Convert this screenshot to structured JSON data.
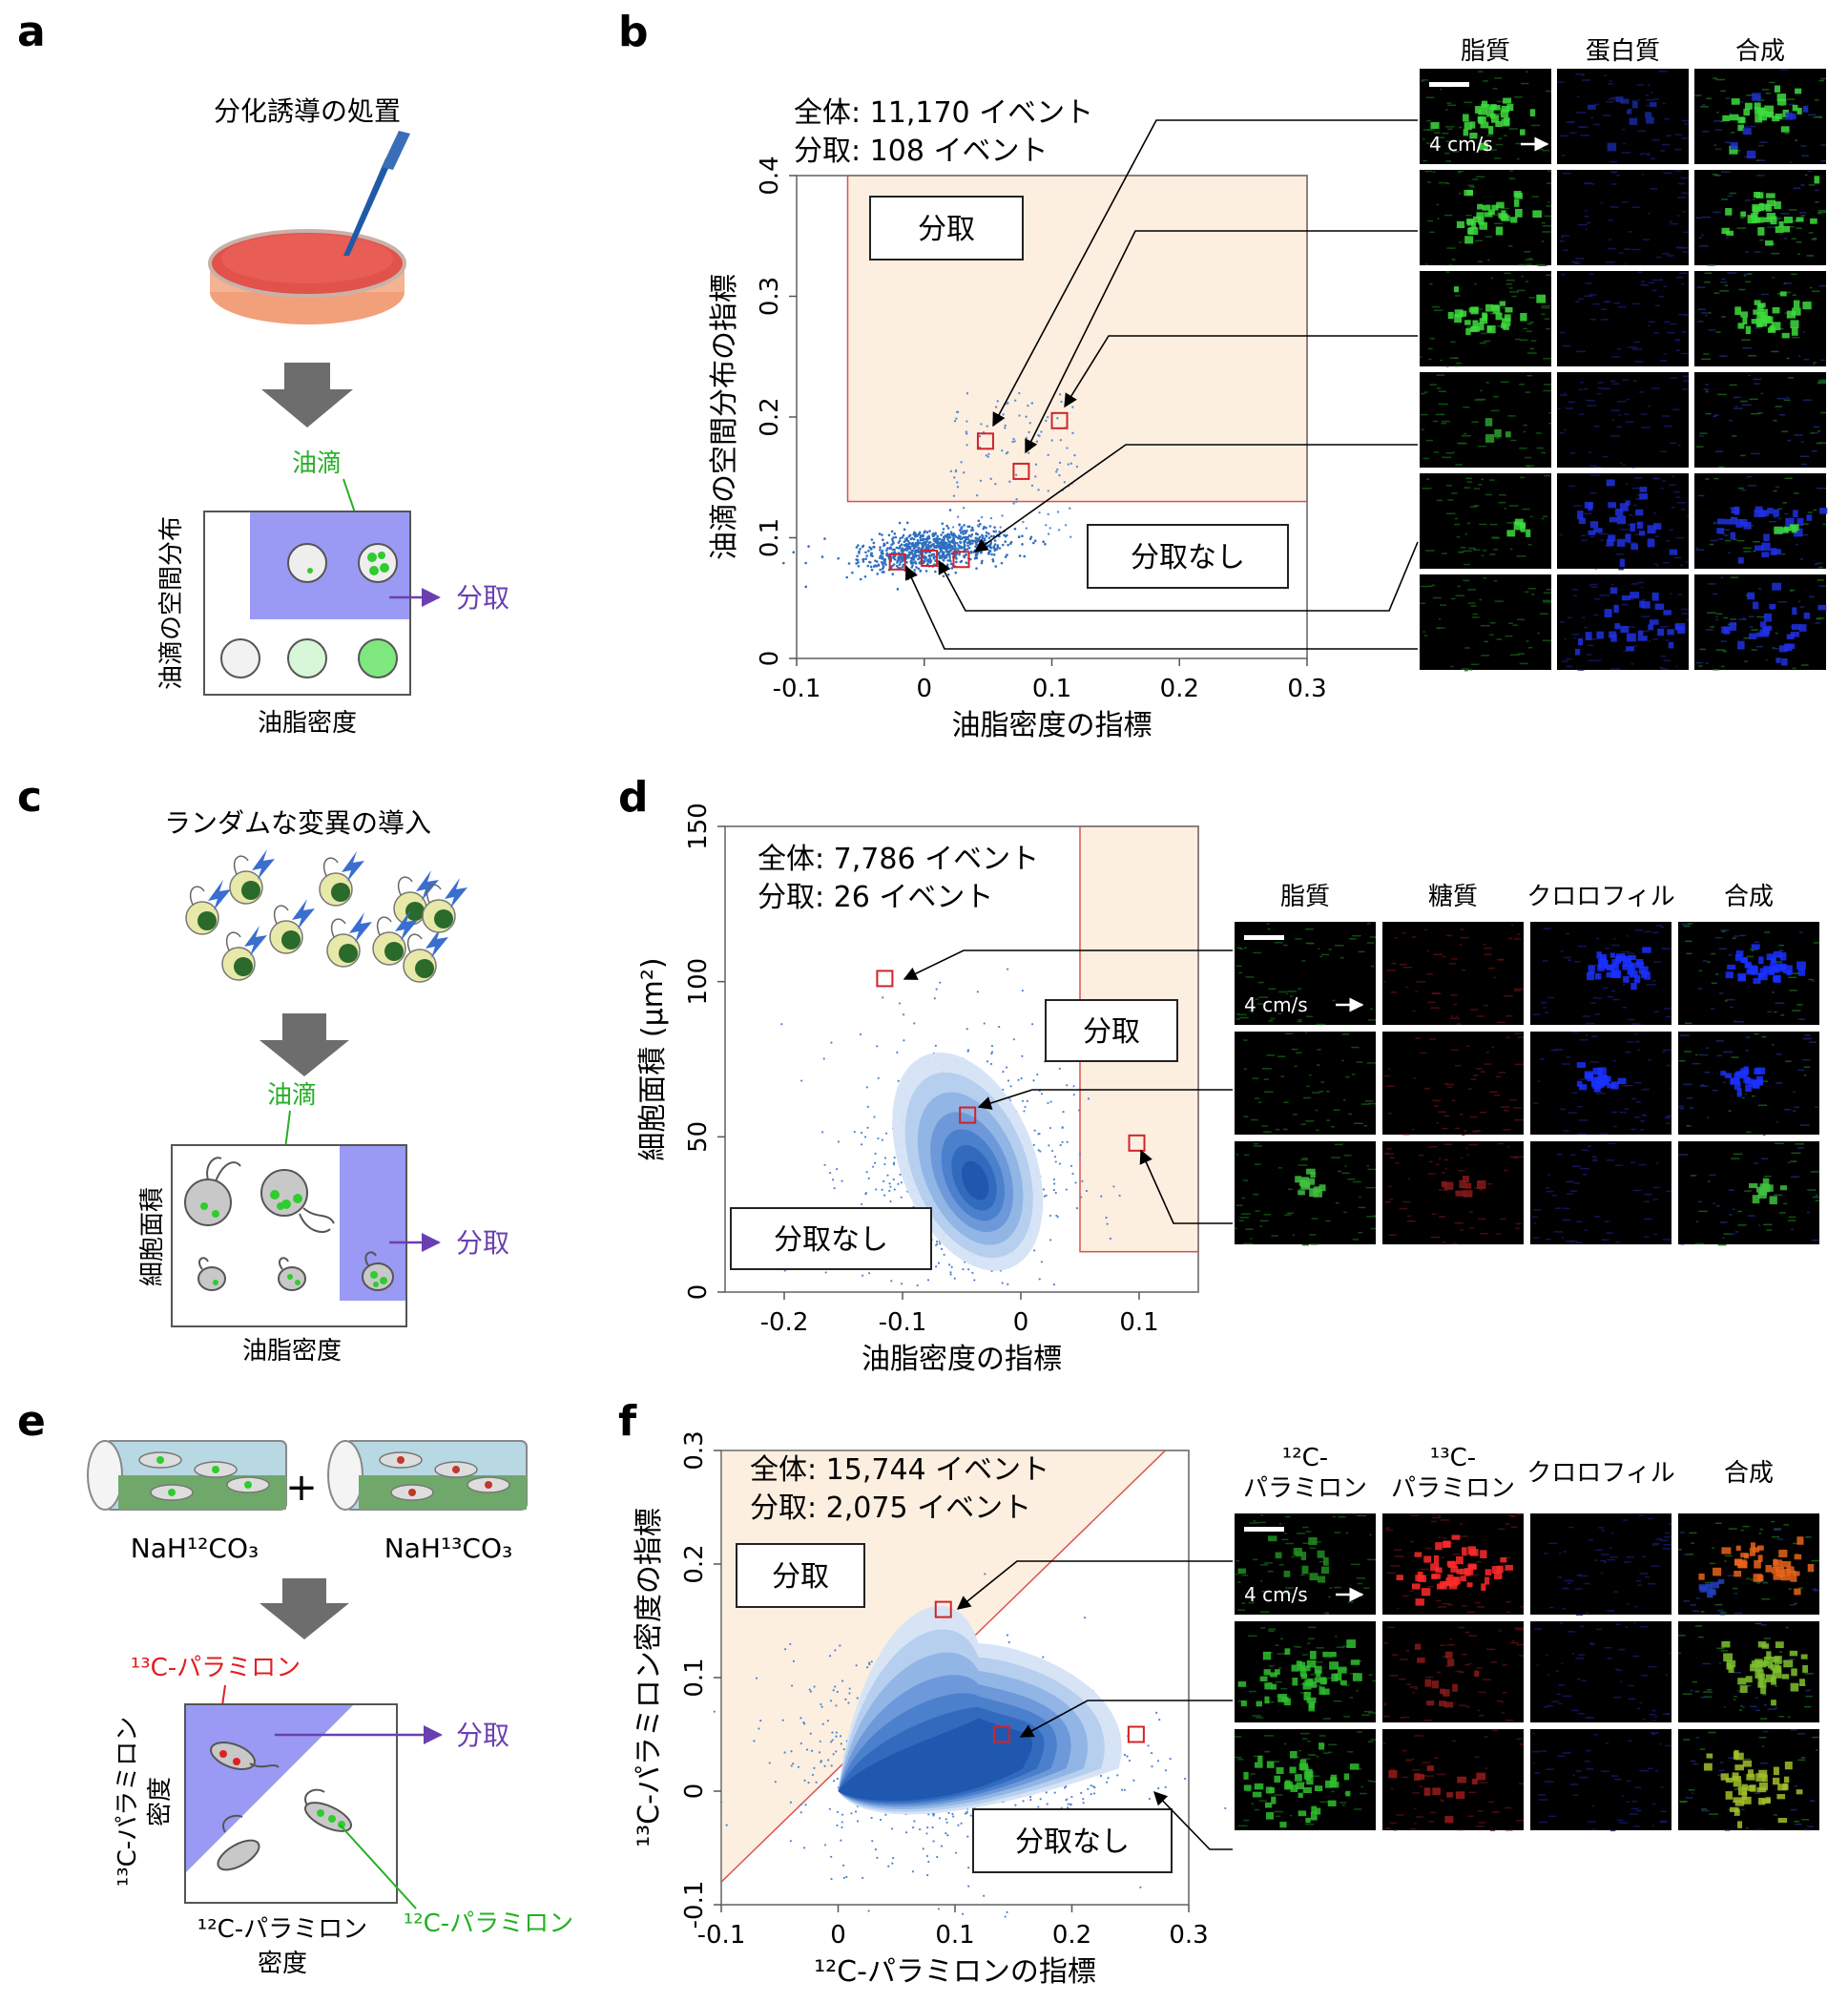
{
  "panels": {
    "a": {
      "letter": "a",
      "title": "分化誘導の処置",
      "droplet_label": "油滴",
      "y_axis": "油滴の空間分布",
      "x_axis": "油脂密度",
      "sort_label": "分取"
    },
    "b": {
      "letter": "b",
      "total_text": "全体: 11,170 イベント",
      "sorted_text": "分取: 108 イベント",
      "sort_box": "分取",
      "nosort_box": "分取なし",
      "xlabel": "油脂密度の指標",
      "ylabel": "油滴の空間分布の指標",
      "xticks": [
        "-0.1",
        "0",
        "0.1",
        "0.2",
        "0.3"
      ],
      "yticks": [
        "0",
        "0.1",
        "0.2",
        "0.3",
        "0.4"
      ],
      "img_headers": [
        "脂質",
        "蛋白質",
        "合成"
      ],
      "speed_label": "4 cm/s"
    },
    "c": {
      "letter": "c",
      "title": "ランダムな変異の導入",
      "droplet_label": "油滴",
      "y_axis": "細胞面積",
      "x_axis": "油脂密度",
      "sort_label": "分取"
    },
    "d": {
      "letter": "d",
      "total_text": "全体: 7,786 イベント",
      "sorted_text": "分取: 26 イベント",
      "sort_box": "分取",
      "nosort_box": "分取なし",
      "xlabel": "油脂密度の指標",
      "ylabel": "細胞面積 (μm²)",
      "xticks": [
        "-0.2",
        "-0.1",
        "0",
        "0.1"
      ],
      "yticks": [
        "0",
        "50",
        "100",
        "150"
      ],
      "img_headers": [
        "脂質",
        "糖質",
        "クロロフィル",
        "合成"
      ],
      "speed_label": "4 cm/s"
    },
    "e": {
      "letter": "e",
      "reagent1": "NaH¹²CO₃",
      "reagent2": "NaH¹³CO₃",
      "plus": "+",
      "c13_label": "¹³C-パラミロン",
      "c12_label": "¹²C-パラミロン",
      "y_axis_line1": "¹³C-パラミロン",
      "y_axis_line2": "密度",
      "x_axis_line1": "¹²C-パラミロン",
      "x_axis_line2": "密度",
      "sort_label": "分取"
    },
    "f": {
      "letter": "f",
      "total_text": "全体: 15,744 イベント",
      "sorted_text": "分取: 2,075 イベント",
      "sort_box": "分取",
      "nosort_box": "分取なし",
      "xlabel": "¹²C-パラミロンの指標",
      "ylabel": "¹³C-パラミロン密度の指標",
      "xticks": [
        "-0.1",
        "0",
        "0.1",
        "0.2",
        "0.3"
      ],
      "yticks": [
        "-0.1",
        "0",
        "0.1",
        "0.2",
        "0.3"
      ],
      "img_headers": [
        "¹²C-\nパラミロン",
        "¹³C-\nパラミロン",
        "クロロフィル",
        "合成"
      ],
      "speed_label": "4 cm/s"
    }
  },
  "chart_data": [
    {
      "panel": "b",
      "type": "scatter",
      "xlabel": "油脂密度の指標",
      "ylabel": "油滴の空間分布の指標",
      "xlim": [
        -0.1,
        0.3
      ],
      "ylim": [
        0,
        0.4
      ],
      "gate": {
        "x_min": -0.06,
        "x_max": 0.3,
        "y_min": 0.13,
        "y_max": 0.4
      },
      "highlighted_points": [
        {
          "x": 0.048,
          "y": 0.18
        },
        {
          "x": 0.076,
          "y": 0.155
        },
        {
          "x": 0.106,
          "y": 0.197
        },
        {
          "x": 0.029,
          "y": 0.082
        },
        {
          "x": 0.004,
          "y": 0.083
        },
        {
          "x": -0.021,
          "y": 0.08
        }
      ]
    },
    {
      "panel": "d",
      "type": "scatter",
      "xlabel": "油脂密度の指標",
      "ylabel": "細胞面積 (μm²)",
      "xlim": [
        -0.25,
        0.15
      ],
      "ylim": [
        0,
        150
      ],
      "gate": {
        "x_min": 0.05,
        "x_max": 0.15,
        "y_min": 13,
        "y_max": 150
      },
      "highlighted_points": [
        {
          "x": -0.115,
          "y": 101
        },
        {
          "x": -0.045,
          "y": 57
        },
        {
          "x": 0.098,
          "y": 48
        }
      ]
    },
    {
      "panel": "f",
      "type": "scatter",
      "xlabel": "¹²C-パラミロンの指標",
      "ylabel": "¹³C-パラミロン密度の指標",
      "xlim": [
        -0.1,
        0.3
      ],
      "ylim": [
        -0.1,
        0.3
      ],
      "gate": {
        "boundary": "diagonal, y above line",
        "line_x": [
          -0.1,
          0.28
        ],
        "line_y": [
          -0.08,
          0.3
        ]
      },
      "highlighted_points": [
        {
          "x": 0.09,
          "y": 0.16
        },
        {
          "x": 0.14,
          "y": 0.05
        },
        {
          "x": 0.255,
          "y": 0.05
        }
      ]
    }
  ],
  "colors": {
    "gate_fill": "#fcefe0",
    "gate_line": "#d9534f",
    "point_blue": "#2f6fbf",
    "sort_purple": "#7b5bc8",
    "droplet_green": "#2ecc2e",
    "lipid_green": "#3ddc3d",
    "protein_blue": "#2a36d6",
    "c13_red": "#e02020"
  }
}
